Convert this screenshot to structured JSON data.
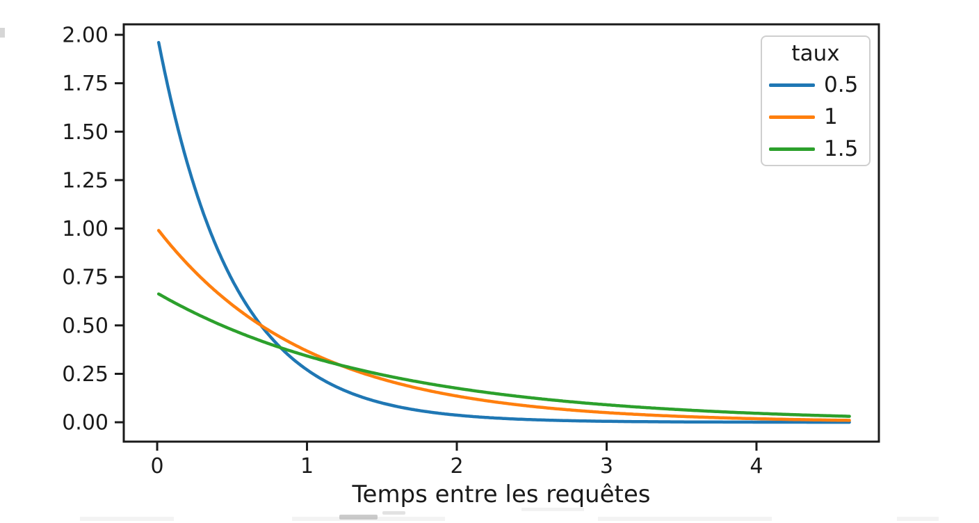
{
  "figure": {
    "background": "#ffffff",
    "text_color": "#1a1a1a",
    "spine_color": "#1a1a1a"
  },
  "chart_data": {
    "type": "line",
    "title": "",
    "xlabel": "Temps entre les requêtes",
    "ylabel": "",
    "legend_title": "taux",
    "legend_position": "upper right",
    "grid": false,
    "xlim": [
      -0.223,
      4.817
    ],
    "ylim": [
      -0.1,
      2.054
    ],
    "x_ticks": [
      0,
      1,
      2,
      3,
      4
    ],
    "x_tick_labels": [
      "0",
      "1",
      "2",
      "3",
      "4"
    ],
    "y_ticks": [
      0,
      0.25,
      0.5,
      0.75,
      1,
      1.25,
      1.5,
      1.75,
      2
    ],
    "y_tick_labels": [
      "0.00",
      "0.25",
      "0.50",
      "0.75",
      "1.00",
      "1.25",
      "1.50",
      "1.75",
      "2.00"
    ],
    "x_data_range": [
      0.01,
      4.62
    ],
    "curve_function": "y = (1/taux) * exp(-x/taux)  (exponential density, taux = scale parameter)",
    "sample_x": [
      0,
      0.5,
      1,
      1.5,
      2,
      2.5,
      3,
      3.5,
      4,
      4.5
    ],
    "series": [
      {
        "name": "0.5",
        "taux": 0.5,
        "color": "#1f77b4",
        "sample_y": [
          2.0,
          0.736,
          0.271,
          0.1,
          0.037,
          0.0135,
          0.005,
          0.0018,
          0.0007,
          0.0002
        ]
      },
      {
        "name": "1",
        "taux": 1,
        "color": "#ff7f0e",
        "sample_y": [
          1.0,
          0.607,
          0.368,
          0.223,
          0.135,
          0.082,
          0.05,
          0.03,
          0.018,
          0.011
        ]
      },
      {
        "name": "1.5",
        "taux": 1.5,
        "color": "#2ca02c",
        "sample_y": [
          0.667,
          0.478,
          0.342,
          0.245,
          0.176,
          0.126,
          0.09,
          0.065,
          0.046,
          0.033
        ]
      }
    ]
  },
  "legend": {
    "title": "taux",
    "entries": [
      {
        "label": "0.5",
        "color": "#1f77b4"
      },
      {
        "label": "1",
        "color": "#ff7f0e"
      },
      {
        "label": "1.5",
        "color": "#2ca02c"
      }
    ]
  }
}
